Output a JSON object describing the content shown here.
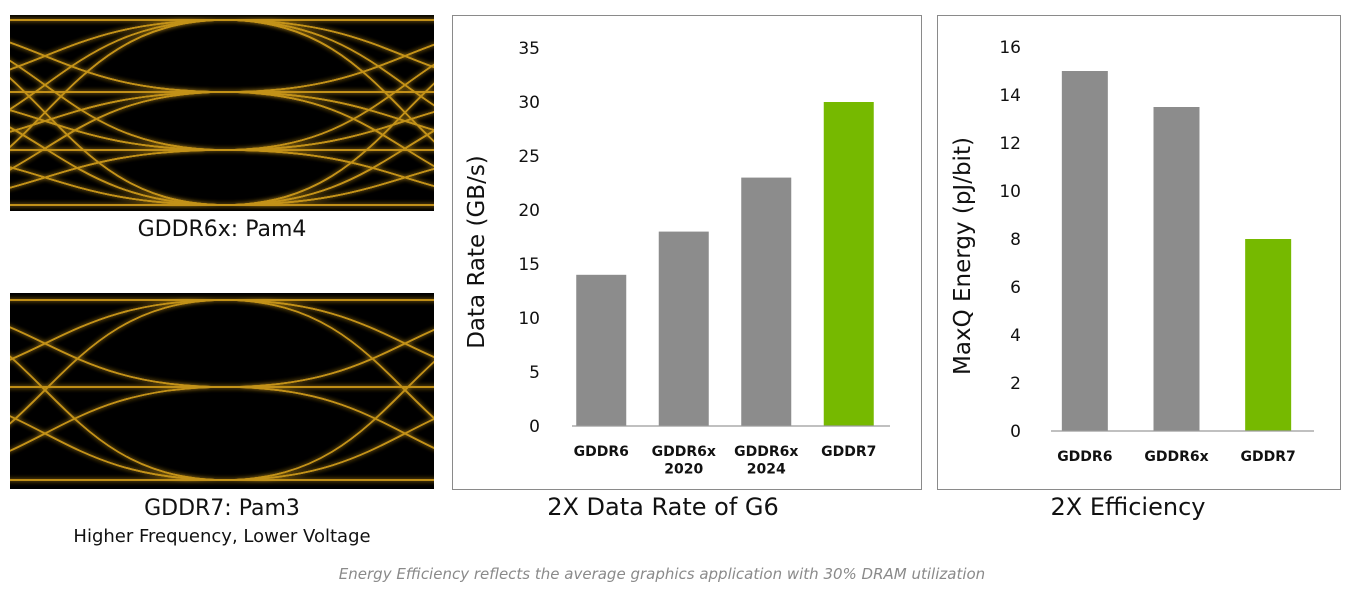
{
  "eye_diagrams": [
    {
      "label": "GDDR6x: Pam4"
    },
    {
      "label": "GDDR7: Pam3",
      "sublabel": "Higher Frequency, Lower Voltage"
    }
  ],
  "chart_data": [
    {
      "type": "bar",
      "title": "2X Data Rate of G6",
      "y_label": "Data Rate (GB/s)",
      "categories": [
        "GDDR6",
        "GDDR6x\n2020",
        "GDDR6x\n2024",
        "GDDR7"
      ],
      "values": [
        14,
        18,
        23,
        30
      ],
      "colors": [
        "#8c8c8c",
        "#8c8c8c",
        "#8c8c8c",
        "#76b900"
      ],
      "ylim": [
        0,
        35
      ],
      "yticks": [
        0,
        5,
        10,
        15,
        20,
        25,
        30,
        35
      ]
    },
    {
      "type": "bar",
      "title": "2X Efficiency",
      "y_label": "MaxQ Energy (pJ/bit)",
      "categories": [
        "GDDR6",
        "GDDR6x",
        "GDDR7"
      ],
      "values": [
        15,
        13.5,
        8
      ],
      "colors": [
        "#8c8c8c",
        "#8c8c8c",
        "#76b900"
      ],
      "ylim": [
        0,
        16
      ],
      "yticks": [
        0,
        2,
        4,
        6,
        8,
        10,
        12,
        14,
        16
      ]
    }
  ],
  "footnote": "Energy Efficiency reflects the average graphics application with 30% DRAM utilization"
}
